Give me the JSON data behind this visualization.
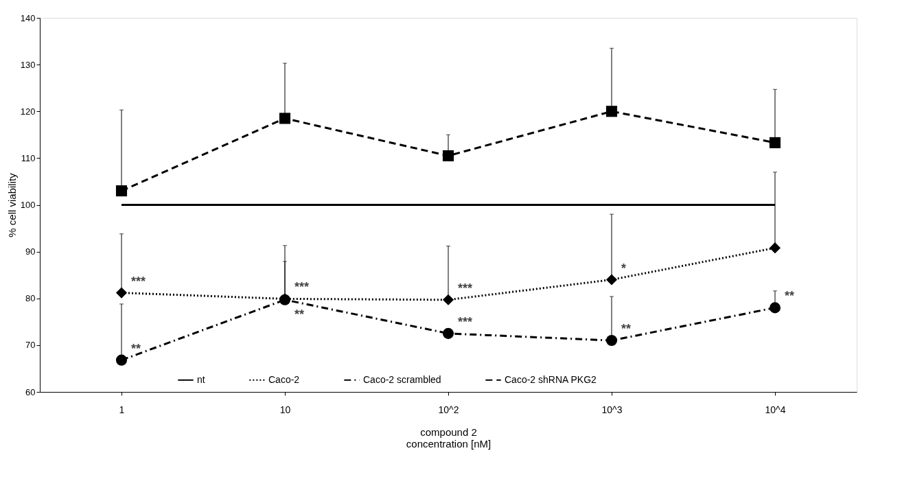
{
  "chart_data": {
    "type": "line",
    "xlabel": "compound 2\nconcentration [nM]",
    "ylabel": "% cell viability",
    "categories": [
      "1",
      "10",
      "10^2",
      "10^3",
      "10^4"
    ],
    "series": [
      {
        "name": "nt",
        "color": "#000000",
        "values": [
          100,
          100,
          100,
          100,
          100
        ],
        "marker": "none",
        "line_style": "solid"
      },
      {
        "name": "Caco-2",
        "color": "#000000",
        "values": [
          81.2,
          79.9,
          79.7,
          84,
          90.8
        ],
        "marker": "diamond",
        "line_style": "dotted",
        "errors": [
          [
            81.2,
            93.8
          ],
          [
            79.9,
            91.3
          ],
          [
            79.7,
            91.2
          ],
          [
            84,
            98
          ],
          [
            90.8,
            107
          ]
        ]
      },
      {
        "name": "Caco-2 scrambled",
        "color": "#000000",
        "values": [
          66.8,
          79.7,
          72.5,
          71,
          78
        ],
        "marker": "circle",
        "line_style": "dashdot",
        "errors": [
          [
            66.8,
            78.8
          ],
          [
            79.7,
            87.9
          ],
          null,
          [
            71,
            80.4
          ],
          [
            78,
            81.6
          ]
        ]
      },
      {
        "name": "Caco-2 shRNA PKG2",
        "color": "#000000",
        "values": [
          103,
          118.5,
          110.5,
          120,
          113.3
        ],
        "marker": "square",
        "line_style": "dashed",
        "errors": [
          [
            103,
            120.3
          ],
          [
            118.5,
            130.3
          ],
          [
            110.5,
            115
          ],
          [
            120,
            133.5
          ],
          [
            113.3,
            124.7
          ]
        ]
      }
    ],
    "annotations": [
      {
        "text": "***",
        "x": "1",
        "y": 81.2
      },
      {
        "text": "**",
        "x": "1",
        "y": 66.8
      },
      {
        "text": "***",
        "x": "10",
        "y": 79.9
      },
      {
        "text": "**",
        "x": "10",
        "y": 79.7
      },
      {
        "text": "***",
        "x": "10^2",
        "y": 79.7
      },
      {
        "text": "***",
        "x": "10^2",
        "y": 72.5
      },
      {
        "text": "*",
        "x": "10^3",
        "y": 84
      },
      {
        "text": "**",
        "x": "10^3",
        "y": 71
      },
      {
        "text": "**",
        "x": "10^4",
        "y": 78
      }
    ],
    "ylim": [
      60,
      140
    ],
    "yticks": [
      60,
      70,
      80,
      90,
      100,
      110,
      120,
      130,
      140
    ],
    "grid": false,
    "legend": "bottom"
  }
}
